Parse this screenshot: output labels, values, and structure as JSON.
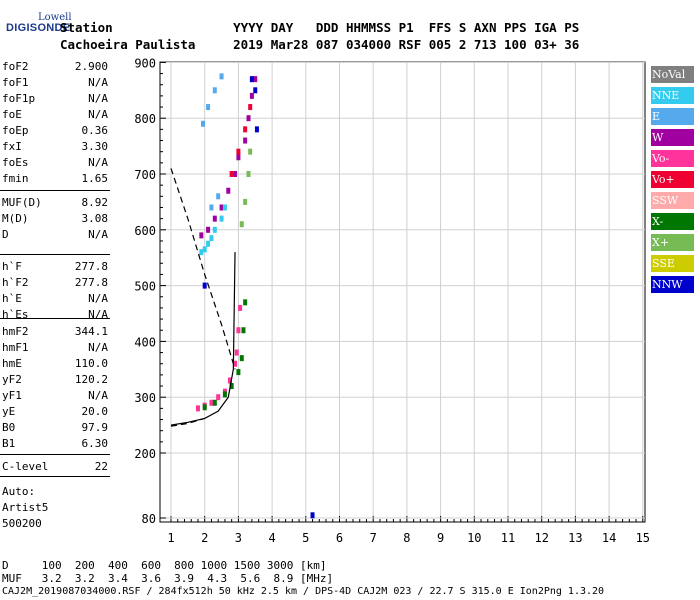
{
  "logo": {
    "company": "Lowell",
    "product": "DIGISONDE"
  },
  "header": {
    "line1": "Station                YYYY DAY   DDD HHMMSS P1  FFS S AXN PPS IGA PS",
    "line2": "Cachoeira Paulista     2019 Mar28 087 034000 RSF 005 2 713 100 03+ 36"
  },
  "params": {
    "group1": [
      {
        "name": "foF2",
        "value": "2.900"
      },
      {
        "name": "foF1",
        "value": "N/A"
      },
      {
        "name": "foF1p",
        "value": "N/A"
      },
      {
        "name": "foE",
        "value": "N/A"
      },
      {
        "name": "foEp",
        "value": "0.36"
      },
      {
        "name": "fxI",
        "value": "3.30"
      },
      {
        "name": "foEs",
        "value": "N/A"
      },
      {
        "name": "fmin",
        "value": "1.65"
      }
    ],
    "group2": [
      {
        "name": "MUF(D)",
        "value": "8.92"
      },
      {
        "name": "M(D)",
        "value": "3.08"
      },
      {
        "name": "D",
        "value": "N/A"
      }
    ],
    "group3": [
      {
        "name": "h`F",
        "value": "277.8"
      },
      {
        "name": "h`F2",
        "value": "277.8"
      },
      {
        "name": "h`E",
        "value": "N/A"
      },
      {
        "name": "h`Es",
        "value": "N/A"
      }
    ],
    "group4": [
      {
        "name": "hmF2",
        "value": "344.1"
      },
      {
        "name": "hmF1",
        "value": "N/A"
      },
      {
        "name": "hmE",
        "value": "110.0"
      },
      {
        "name": "yF2",
        "value": "120.2"
      },
      {
        "name": "yF1",
        "value": "N/A"
      },
      {
        "name": "yE",
        "value": "20.0"
      },
      {
        "name": "B0",
        "value": "97.9"
      },
      {
        "name": "B1",
        "value": "6.30"
      }
    ],
    "group5": [
      {
        "name": "C-level",
        "value": "22"
      }
    ],
    "auto": [
      "Auto:",
      "Artist5",
      "500200"
    ]
  },
  "legend": [
    {
      "label": "NoVal",
      "color": "#7f7f7f",
      "text_color": "#ffffff"
    },
    {
      "label": "NNE",
      "color": "#33ccee",
      "text_color": "#ffffff"
    },
    {
      "label": "E",
      "color": "#55aaee",
      "text_color": "#ffffff"
    },
    {
      "label": "W",
      "color": "#a000a0",
      "text_color": "#ffffff"
    },
    {
      "label": "Vo-",
      "color": "#ff3399",
      "text_color": "#ffffff"
    },
    {
      "label": "Vo+",
      "color": "#ee0033",
      "text_color": "#ffffff"
    },
    {
      "label": "SSW",
      "color": "#ffaaaa",
      "text_color": "#ffffff"
    },
    {
      "label": "X-",
      "color": "#007700",
      "text_color": "#ffffff"
    },
    {
      "label": "X+",
      "color": "#77bb55",
      "text_color": "#ffffff"
    },
    {
      "label": "SSE",
      "color": "#cccc00",
      "text_color": "#ffffff"
    },
    {
      "label": "NNW",
      "color": "#0000cc",
      "text_color": "#ffffff"
    }
  ],
  "footer": {
    "line1": "D     100  200  400  600  800 1000 1500 3000 [km]",
    "line2": "MUF   3.2  3.2  3.4  3.6  3.9  4.3  5.6  8.9 [MHz]",
    "line3": "CAJ2M_2019087034000.RSF / 284fx512h 50 kHz 2.5 km / DPS-4D CAJ2M 023 / 22.7 S 315.0 E Ion2Png 1.3.20"
  },
  "chart_data": {
    "type": "scatter",
    "x_ticks": [
      1,
      2,
      3,
      4,
      5,
      6,
      7,
      8,
      9,
      10,
      11,
      12,
      13,
      14,
      15
    ],
    "y_ticks": [
      80,
      200,
      300,
      400,
      500,
      600,
      700,
      800,
      900
    ],
    "xlim": [
      1,
      15
    ],
    "ylim": [
      80,
      900
    ],
    "grid": true,
    "profile": {
      "name": "",
      "x": [
        1.0,
        1.5,
        2.0,
        2.4,
        2.7,
        2.85,
        2.9
      ],
      "y": [
        250,
        255,
        262,
        275,
        300,
        350,
        560
      ]
    },
    "profile_extrapolated_low": {
      "x": [
        1.0,
        1.5,
        2.0
      ],
      "y": [
        248,
        253,
        262
      ]
    },
    "profile_extrapolated_high": {
      "x": [
        1.0,
        1.5,
        2.0,
        2.5,
        2.9
      ],
      "y": [
        710,
        620,
        520,
        430,
        350
      ]
    },
    "echoes": [
      {
        "series": "Vo-",
        "points": [
          [
            1.8,
            280
          ],
          [
            2.0,
            285
          ],
          [
            2.2,
            290
          ],
          [
            2.4,
            300
          ],
          [
            2.6,
            310
          ],
          [
            2.75,
            330
          ],
          [
            2.9,
            360
          ],
          [
            2.95,
            380
          ],
          [
            3.0,
            420
          ],
          [
            3.05,
            460
          ]
        ]
      },
      {
        "series": "X-",
        "points": [
          [
            2.0,
            282
          ],
          [
            2.3,
            290
          ],
          [
            2.6,
            305
          ],
          [
            2.8,
            320
          ],
          [
            3.0,
            345
          ],
          [
            3.1,
            370
          ],
          [
            3.15,
            420
          ],
          [
            3.2,
            470
          ]
        ]
      },
      {
        "series": "W",
        "points": [
          [
            1.9,
            590
          ],
          [
            2.1,
            600
          ],
          [
            2.3,
            620
          ],
          [
            2.5,
            640
          ],
          [
            2.7,
            670
          ],
          [
            2.9,
            700
          ],
          [
            3.0,
            730
          ],
          [
            3.2,
            760
          ],
          [
            3.3,
            800
          ],
          [
            3.4,
            840
          ],
          [
            3.5,
            870
          ]
        ]
      },
      {
        "series": "NNE",
        "points": [
          [
            1.9,
            560
          ],
          [
            2.0,
            565
          ],
          [
            2.1,
            575
          ],
          [
            2.2,
            585
          ],
          [
            2.3,
            600
          ],
          [
            2.5,
            620
          ],
          [
            2.6,
            640
          ]
        ]
      },
      {
        "series": "E",
        "points": [
          [
            1.95,
            790
          ],
          [
            2.1,
            820
          ],
          [
            2.3,
            850
          ],
          [
            2.5,
            875
          ],
          [
            2.2,
            640
          ],
          [
            2.4,
            660
          ]
        ]
      },
      {
        "series": "Vo+",
        "points": [
          [
            2.8,
            700
          ],
          [
            3.0,
            740
          ],
          [
            3.2,
            780
          ],
          [
            3.35,
            820
          ]
        ]
      },
      {
        "series": "NNW",
        "points": [
          [
            3.4,
            870
          ],
          [
            3.5,
            850
          ],
          [
            3.55,
            780
          ],
          [
            5.2,
            85
          ],
          [
            2.0,
            500
          ]
        ]
      },
      {
        "series": "X+",
        "points": [
          [
            3.1,
            610
          ],
          [
            3.2,
            650
          ],
          [
            3.3,
            700
          ],
          [
            3.35,
            740
          ]
        ]
      }
    ]
  }
}
